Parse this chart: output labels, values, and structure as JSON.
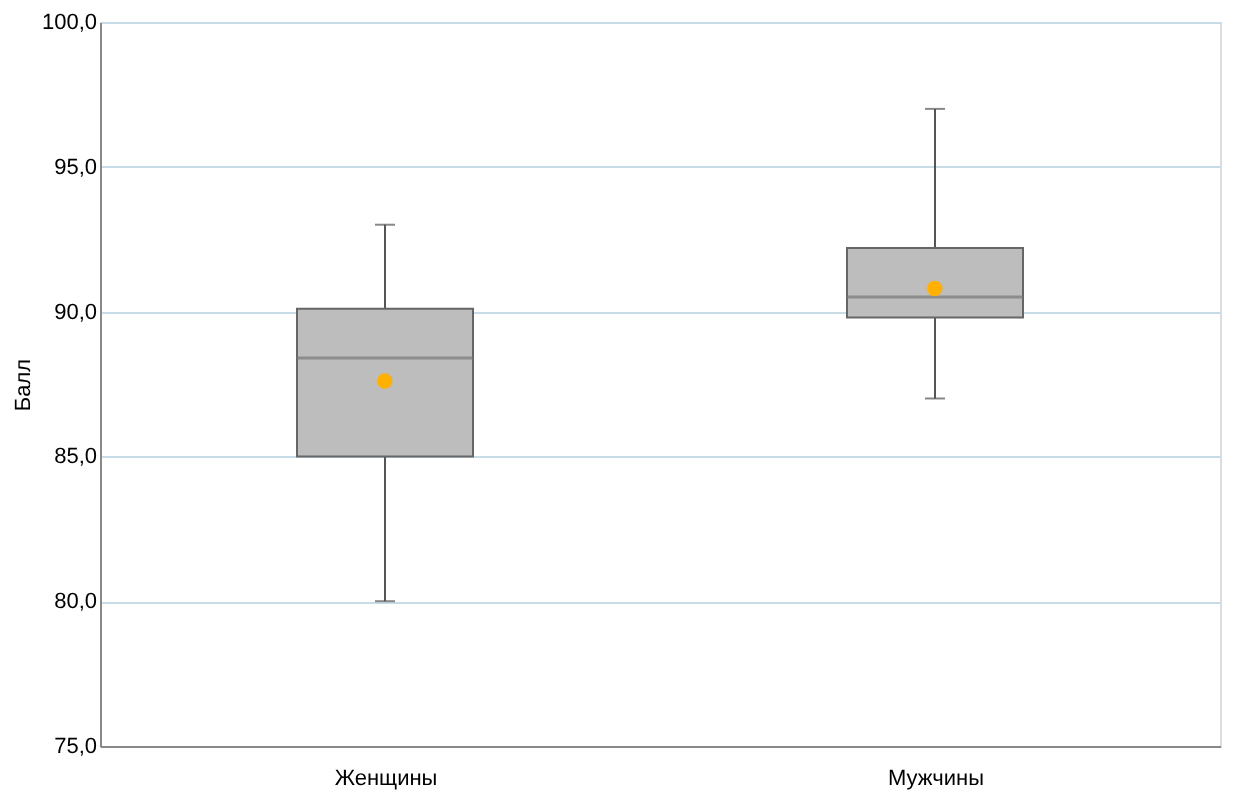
{
  "chart_data": {
    "type": "box",
    "ylabel": "Балл",
    "categories": [
      "Женщины",
      "Мужчины"
    ],
    "boxes": [
      {
        "low": 80.0,
        "q1": 85.0,
        "median": 88.4,
        "q3": 90.1,
        "high": 93.0,
        "mean": 87.6
      },
      {
        "low": 87.0,
        "q1": 89.8,
        "median": 90.5,
        "q3": 92.2,
        "high": 97.0,
        "mean": 90.8
      }
    ],
    "color": "#bdbdbd",
    "ylim": [
      75,
      100
    ],
    "yticks": [
      {
        "value": 75,
        "label": "75,0"
      },
      {
        "value": 80,
        "label": "80,0"
      },
      {
        "value": 85,
        "label": "85,0"
      },
      {
        "value": 90,
        "label": "90,0"
      },
      {
        "value": 95,
        "label": "95,0"
      },
      {
        "value": 100,
        "label": "100,0"
      }
    ],
    "grid": "y"
  }
}
